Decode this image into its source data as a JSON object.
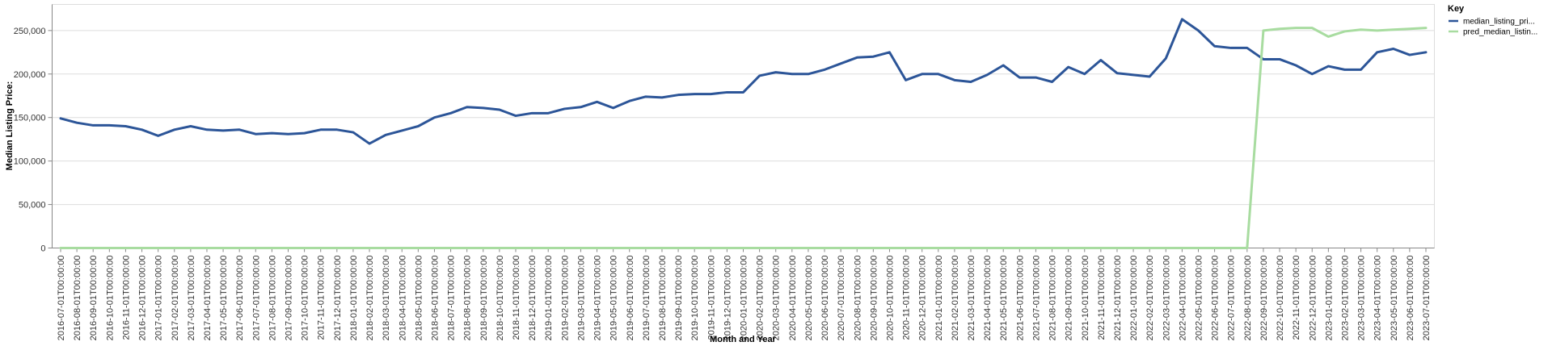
{
  "chart_data": {
    "type": "line",
    "xlabel": "Month and Year",
    "ylabel": "Median Listing Price:",
    "ylim": [
      0,
      280000
    ],
    "y_ticks": [
      0,
      50000,
      100000,
      150000,
      200000,
      250000
    ],
    "y_tick_labels": [
      "0",
      "50,000",
      "100,000",
      "150,000",
      "200,000",
      "250,000"
    ],
    "grid": true,
    "legend": {
      "title": "Key",
      "position": "top-right"
    },
    "x": [
      "2016-07-01T00:00:00",
      "2016-08-01T00:00:00",
      "2016-09-01T00:00:00",
      "2016-10-01T00:00:00",
      "2016-11-01T00:00:00",
      "2016-12-01T00:00:00",
      "2017-01-01T00:00:00",
      "2017-02-01T00:00:00",
      "2017-03-01T00:00:00",
      "2017-04-01T00:00:00",
      "2017-05-01T00:00:00",
      "2017-06-01T00:00:00",
      "2017-07-01T00:00:00",
      "2017-08-01T00:00:00",
      "2017-09-01T00:00:00",
      "2017-10-01T00:00:00",
      "2017-11-01T00:00:00",
      "2017-12-01T00:00:00",
      "2018-01-01T00:00:00",
      "2018-02-01T00:00:00",
      "2018-03-01T00:00:00",
      "2018-04-01T00:00:00",
      "2018-05-01T00:00:00",
      "2018-06-01T00:00:00",
      "2018-07-01T00:00:00",
      "2018-08-01T00:00:00",
      "2018-09-01T00:00:00",
      "2018-10-01T00:00:00",
      "2018-11-01T00:00:00",
      "2018-12-01T00:00:00",
      "2019-01-01T00:00:00",
      "2019-02-01T00:00:00",
      "2019-03-01T00:00:00",
      "2019-04-01T00:00:00",
      "2019-05-01T00:00:00",
      "2019-06-01T00:00:00",
      "2019-07-01T00:00:00",
      "2019-08-01T00:00:00",
      "2019-09-01T00:00:00",
      "2019-10-01T00:00:00",
      "2019-11-01T00:00:00",
      "2019-12-01T00:00:00",
      "2020-01-01T00:00:00",
      "2020-02-01T00:00:00",
      "2020-03-01T00:00:00",
      "2020-04-01T00:00:00",
      "2020-05-01T00:00:00",
      "2020-06-01T00:00:00",
      "2020-07-01T00:00:00",
      "2020-08-01T00:00:00",
      "2020-09-01T00:00:00",
      "2020-10-01T00:00:00",
      "2020-11-01T00:00:00",
      "2020-12-01T00:00:00",
      "2021-01-01T00:00:00",
      "2021-02-01T00:00:00",
      "2021-03-01T00:00:00",
      "2021-04-01T00:00:00",
      "2021-05-01T00:00:00",
      "2021-06-01T00:00:00",
      "2021-07-01T00:00:00",
      "2021-08-01T00:00:00",
      "2021-09-01T00:00:00",
      "2021-10-01T00:00:00",
      "2021-11-01T00:00:00",
      "2021-12-01T00:00:00",
      "2022-01-01T00:00:00",
      "2022-02-01T00:00:00",
      "2022-03-01T00:00:00",
      "2022-04-01T00:00:00",
      "2022-05-01T00:00:00",
      "2022-06-01T00:00:00",
      "2022-07-01T00:00:00",
      "2022-08-01T00:00:00",
      "2022-09-01T00:00:00",
      "2022-10-01T00:00:00",
      "2022-11-01T00:00:00",
      "2022-12-01T00:00:00",
      "2023-01-01T00:00:00",
      "2023-02-01T00:00:00",
      "2023-03-01T00:00:00",
      "2023-04-01T00:00:00",
      "2023-05-01T00:00:00",
      "2023-06-01T00:00:00",
      "2023-07-01T00:00:00"
    ],
    "series": [
      {
        "name": "median_listing_pri...",
        "color": "#2c5598",
        "values": [
          149000,
          144000,
          141000,
          141000,
          140000,
          136000,
          129000,
          136000,
          140000,
          136000,
          135000,
          136000,
          131000,
          132000,
          131000,
          132000,
          136000,
          136000,
          133000,
          120000,
          130000,
          135000,
          140000,
          150000,
          155000,
          162000,
          161000,
          159000,
          152000,
          155000,
          155000,
          160000,
          162000,
          168000,
          161000,
          169000,
          174000,
          173000,
          176000,
          177000,
          177000,
          179000,
          179000,
          198000,
          202000,
          200000,
          200000,
          205000,
          212000,
          219000,
          220000,
          225000,
          193000,
          200000,
          200000,
          193000,
          191000,
          199000,
          210000,
          196000,
          196000,
          191000,
          208000,
          200000,
          216000,
          201000,
          199000,
          197000,
          218000,
          263000,
          250000,
          232000,
          230000,
          230000,
          217000,
          217000,
          210000,
          200000,
          209000,
          205000,
          205000,
          225000,
          229000,
          222000,
          225000
        ]
      },
      {
        "name": "pred_median_listin...",
        "color": "#a8dca0",
        "values": [
          0,
          0,
          0,
          0,
          0,
          0,
          0,
          0,
          0,
          0,
          0,
          0,
          0,
          0,
          0,
          0,
          0,
          0,
          0,
          0,
          0,
          0,
          0,
          0,
          0,
          0,
          0,
          0,
          0,
          0,
          0,
          0,
          0,
          0,
          0,
          0,
          0,
          0,
          0,
          0,
          0,
          0,
          0,
          0,
          0,
          0,
          0,
          0,
          0,
          0,
          0,
          0,
          0,
          0,
          0,
          0,
          0,
          0,
          0,
          0,
          0,
          0,
          0,
          0,
          0,
          0,
          0,
          0,
          0,
          0,
          0,
          0,
          0,
          0,
          250000,
          252000,
          253000,
          253000,
          243000,
          249000,
          251000,
          250000,
          251000,
          252000,
          253000
        ]
      }
    ]
  }
}
